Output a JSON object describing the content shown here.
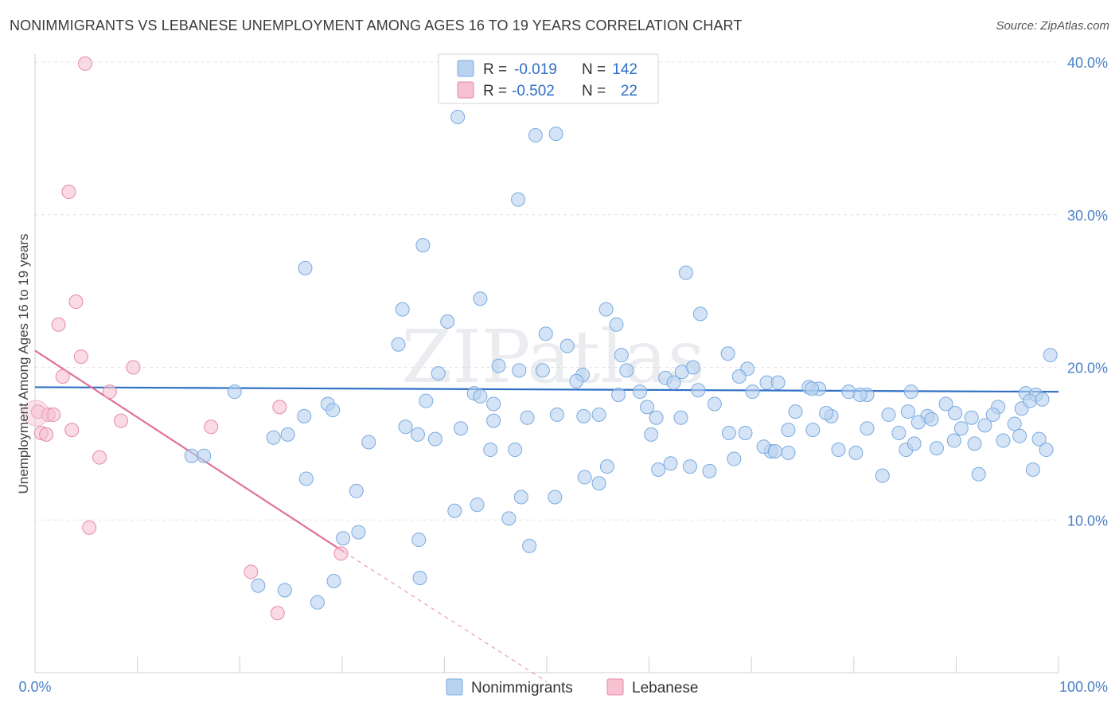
{
  "title": "NONIMMIGRANTS VS LEBANESE UNEMPLOYMENT AMONG AGES 16 TO 19 YEARS CORRELATION CHART",
  "source": "Source: ZipAtlas.com",
  "watermark": "ZIPatlas",
  "colors": {
    "blue": "#7aaae0",
    "blue_fill": "#b8d2f0",
    "blue_line": "#2f6fc4",
    "pink": "#e68aa8",
    "pink_fill": "#f6c2d2",
    "pink_line": "#e0709a",
    "axis_text": "#4a7fc7"
  },
  "chart_data": {
    "type": "scatter",
    "title": "NONIMMIGRANTS VS LEBANESE UNEMPLOYMENT AMONG AGES 16 TO 19 YEARS CORRELATION CHART",
    "xlabel": "",
    "ylabel": "Unemployment Among Ages 16 to 19 years",
    "xlim": [
      0,
      100
    ],
    "ylim": [
      0,
      40
    ],
    "x_tick_labels": [
      "0.0%",
      "100.0%"
    ],
    "y_tick_labels": [
      "10.0%",
      "20.0%",
      "30.0%",
      "40.0%"
    ],
    "y_ticks": [
      10,
      20,
      30,
      40
    ],
    "grid": true,
    "legend_position": "top-center",
    "stats": [
      {
        "r_label": "R =",
        "r": "-0.019",
        "n_label": "N =",
        "n": "142"
      },
      {
        "r_label": "R =",
        "r": "-0.502",
        "n_label": "N =",
        "n": "22"
      }
    ],
    "series": [
      {
        "name": "Nonimmigrants",
        "trend": {
          "x": [
            0,
            100
          ],
          "y": [
            18.7,
            18.4
          ]
        },
        "points": [
          [
            41.3,
            36.4
          ],
          [
            48.9,
            35.2
          ],
          [
            50.9,
            35.3
          ],
          [
            47.2,
            31.0
          ],
          [
            37.9,
            28.0
          ],
          [
            26.4,
            26.5
          ],
          [
            63.6,
            26.2
          ],
          [
            43.5,
            24.5
          ],
          [
            35.9,
            23.8
          ],
          [
            65.0,
            23.5
          ],
          [
            40.3,
            23.0
          ],
          [
            55.8,
            23.8
          ],
          [
            56.8,
            22.8
          ],
          [
            49.9,
            22.2
          ],
          [
            52.0,
            21.4
          ],
          [
            35.5,
            21.5
          ],
          [
            57.3,
            20.8
          ],
          [
            45.3,
            20.1
          ],
          [
            49.6,
            19.8
          ],
          [
            39.4,
            19.6
          ],
          [
            47.3,
            19.8
          ],
          [
            57.8,
            19.8
          ],
          [
            63.2,
            19.7
          ],
          [
            61.6,
            19.3
          ],
          [
            64.3,
            20.0
          ],
          [
            67.7,
            20.9
          ],
          [
            69.6,
            19.9
          ],
          [
            53.5,
            19.5
          ],
          [
            68.8,
            19.4
          ],
          [
            62.4,
            19.0
          ],
          [
            52.9,
            19.1
          ],
          [
            71.5,
            19.0
          ],
          [
            72.6,
            19.0
          ],
          [
            75.6,
            18.7
          ],
          [
            76.6,
            18.6
          ],
          [
            57.0,
            18.2
          ],
          [
            59.1,
            18.4
          ],
          [
            64.8,
            18.5
          ],
          [
            70.1,
            18.4
          ],
          [
            79.5,
            18.4
          ],
          [
            81.3,
            18.2
          ],
          [
            85.6,
            18.4
          ],
          [
            80.6,
            18.2
          ],
          [
            19.5,
            18.4
          ],
          [
            42.9,
            18.3
          ],
          [
            43.5,
            18.1
          ],
          [
            28.6,
            17.6
          ],
          [
            38.2,
            17.8
          ],
          [
            59.8,
            17.4
          ],
          [
            66.4,
            17.6
          ],
          [
            75.9,
            18.6
          ],
          [
            77.8,
            16.8
          ],
          [
            85.3,
            17.1
          ],
          [
            87.2,
            16.8
          ],
          [
            89.9,
            17.0
          ],
          [
            94.1,
            17.4
          ],
          [
            96.8,
            18.3
          ],
          [
            97.8,
            18.2
          ],
          [
            96.4,
            17.3
          ],
          [
            97.2,
            17.8
          ],
          [
            29.1,
            17.2
          ],
          [
            26.3,
            16.8
          ],
          [
            44.8,
            17.6
          ],
          [
            48.1,
            16.7
          ],
          [
            51.0,
            16.9
          ],
          [
            53.6,
            16.8
          ],
          [
            55.1,
            16.9
          ],
          [
            60.7,
            16.7
          ],
          [
            63.1,
            16.7
          ],
          [
            74.3,
            17.1
          ],
          [
            77.3,
            17.0
          ],
          [
            83.4,
            16.9
          ],
          [
            89.0,
            17.6
          ],
          [
            91.5,
            16.7
          ],
          [
            93.6,
            16.9
          ],
          [
            95.7,
            16.3
          ],
          [
            92.8,
            16.2
          ],
          [
            90.5,
            16.0
          ],
          [
            87.6,
            16.6
          ],
          [
            86.3,
            16.4
          ],
          [
            84.4,
            15.7
          ],
          [
            81.3,
            16.0
          ],
          [
            76.0,
            15.9
          ],
          [
            73.6,
            15.9
          ],
          [
            69.4,
            15.7
          ],
          [
            67.8,
            15.7
          ],
          [
            60.2,
            15.6
          ],
          [
            44.8,
            16.5
          ],
          [
            41.6,
            16.0
          ],
          [
            36.2,
            16.1
          ],
          [
            32.6,
            15.1
          ],
          [
            15.3,
            14.2
          ],
          [
            16.5,
            14.2
          ],
          [
            24.7,
            15.6
          ],
          [
            23.3,
            15.4
          ],
          [
            37.4,
            15.6
          ],
          [
            39.1,
            15.3
          ],
          [
            44.5,
            14.6
          ],
          [
            46.9,
            14.6
          ],
          [
            55.9,
            13.5
          ],
          [
            64.0,
            13.5
          ],
          [
            71.9,
            14.5
          ],
          [
            73.6,
            14.4
          ],
          [
            78.5,
            14.6
          ],
          [
            80.2,
            14.4
          ],
          [
            85.1,
            14.6
          ],
          [
            85.9,
            15.0
          ],
          [
            88.1,
            14.7
          ],
          [
            89.8,
            15.2
          ],
          [
            91.8,
            15.0
          ],
          [
            94.6,
            15.2
          ],
          [
            96.2,
            15.5
          ],
          [
            26.5,
            12.7
          ],
          [
            31.4,
            11.9
          ],
          [
            47.5,
            11.5
          ],
          [
            50.8,
            11.5
          ],
          [
            53.7,
            12.8
          ],
          [
            55.1,
            12.4
          ],
          [
            60.9,
            13.3
          ],
          [
            62.1,
            13.7
          ],
          [
            65.9,
            13.2
          ],
          [
            68.3,
            14.0
          ],
          [
            71.2,
            14.8
          ],
          [
            72.3,
            14.5
          ],
          [
            82.8,
            12.9
          ],
          [
            92.2,
            13.0
          ],
          [
            97.5,
            13.3
          ],
          [
            98.1,
            15.3
          ],
          [
            98.8,
            14.6
          ],
          [
            99.2,
            20.8
          ],
          [
            98.4,
            17.9
          ],
          [
            41.0,
            10.6
          ],
          [
            43.2,
            11.0
          ],
          [
            46.3,
            10.1
          ],
          [
            48.3,
            8.3
          ],
          [
            37.5,
            8.7
          ],
          [
            31.6,
            9.2
          ],
          [
            29.2,
            6.0
          ],
          [
            27.6,
            4.6
          ],
          [
            21.8,
            5.7
          ],
          [
            24.4,
            5.4
          ],
          [
            30.1,
            8.8
          ],
          [
            37.6,
            6.2
          ]
        ]
      },
      {
        "name": "Lebanese",
        "trend": {
          "x": [
            0,
            30.2
          ],
          "y": [
            21.1,
            7.9
          ]
        },
        "trend_extension": {
          "x": [
            30.2,
            50
          ],
          "y": [
            7.9,
            -0.6
          ]
        },
        "points": [
          [
            4.9,
            39.9
          ],
          [
            3.3,
            31.5
          ],
          [
            4.0,
            24.3
          ],
          [
            2.3,
            22.8
          ],
          [
            4.5,
            20.7
          ],
          [
            9.6,
            20.0
          ],
          [
            2.7,
            19.4
          ],
          [
            7.3,
            18.4
          ],
          [
            0.3,
            17.1
          ],
          [
            1.3,
            16.9
          ],
          [
            1.8,
            16.9
          ],
          [
            8.4,
            16.5
          ],
          [
            17.2,
            16.1
          ],
          [
            3.6,
            15.9
          ],
          [
            0.6,
            15.7
          ],
          [
            1.1,
            15.6
          ],
          [
            6.3,
            14.1
          ],
          [
            5.3,
            9.5
          ],
          [
            23.9,
            17.4
          ],
          [
            21.1,
            6.6
          ],
          [
            23.7,
            3.9
          ],
          [
            29.9,
            7.8
          ]
        ]
      }
    ]
  },
  "bottom_legend": {
    "items": [
      {
        "label": "Nonimmigrants"
      },
      {
        "label": "Lebanese"
      }
    ]
  }
}
